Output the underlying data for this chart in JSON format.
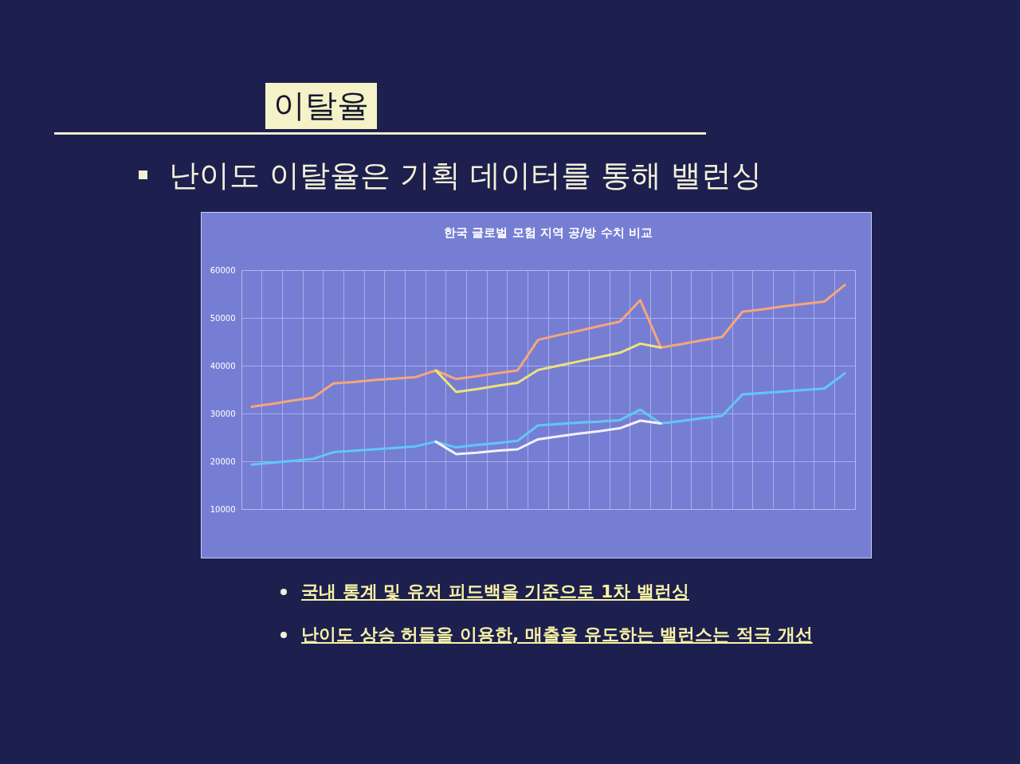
{
  "chart_data": {
    "type": "line",
    "title": "한국 글로벌 모험 지역 공/방 수치 비교",
    "annotations": [
      "이탈율",
      "난이도 이탈율은 기획 데이터를 통해 밸런싱",
      "국내 통계 및 유저 피드백을 기준으로 1차 밸런싱",
      "난이도 상승 허들을 이용한, 매출을 유도하는 밸런스는 적극 개선"
    ],
    "categories": [
      null,
      null,
      null,
      null,
      null,
      null,
      null,
      null,
      null,
      null,
      null,
      null,
      null,
      null,
      null,
      null,
      null,
      null,
      null,
      null,
      null,
      null,
      null,
      null,
      null,
      null,
      null,
      null,
      null,
      null
    ],
    "series": [
      {
        "color": "#f6a67a",
        "values": [
          31400,
          32000,
          32700,
          33300,
          36300,
          36600,
          37000,
          37300,
          37600,
          39000,
          37200,
          37800,
          38400,
          39000,
          45400,
          46400,
          47300,
          48300,
          49200,
          53700,
          43800,
          44500,
          45300,
          46000,
          51300,
          51800,
          52400,
          52900,
          53400,
          56900
        ]
      },
      {
        "color": "#efe27a",
        "values": [
          null,
          null,
          null,
          null,
          null,
          null,
          null,
          null,
          null,
          39000,
          34500,
          35100,
          35800,
          36400,
          39100,
          40000,
          40900,
          41800,
          42700,
          44600,
          43800,
          null,
          null,
          null,
          null,
          null,
          null,
          null,
          null,
          null
        ]
      },
      {
        "color": "#5fc8f5",
        "values": [
          19300,
          19700,
          20100,
          20500,
          21900,
          22200,
          22500,
          22800,
          23100,
          24100,
          22900,
          23400,
          23800,
          24300,
          27500,
          27800,
          28100,
          28300,
          28600,
          30800,
          27900,
          28400,
          29000,
          29500,
          34000,
          34300,
          34600,
          34900,
          35200,
          38400
        ]
      },
      {
        "color": "#f0f2ff",
        "values": [
          null,
          null,
          null,
          null,
          null,
          null,
          null,
          null,
          null,
          24100,
          21500,
          21800,
          22200,
          22500,
          24600,
          25200,
          25800,
          26300,
          26900,
          28500,
          27900,
          null,
          null,
          null,
          null,
          null,
          null,
          null,
          null,
          null
        ]
      }
    ],
    "ylim": [
      10000,
      60000
    ],
    "yticks": [
      10000,
      20000,
      30000,
      40000,
      50000,
      60000
    ],
    "grid": true,
    "tick_labels": "y"
  }
}
